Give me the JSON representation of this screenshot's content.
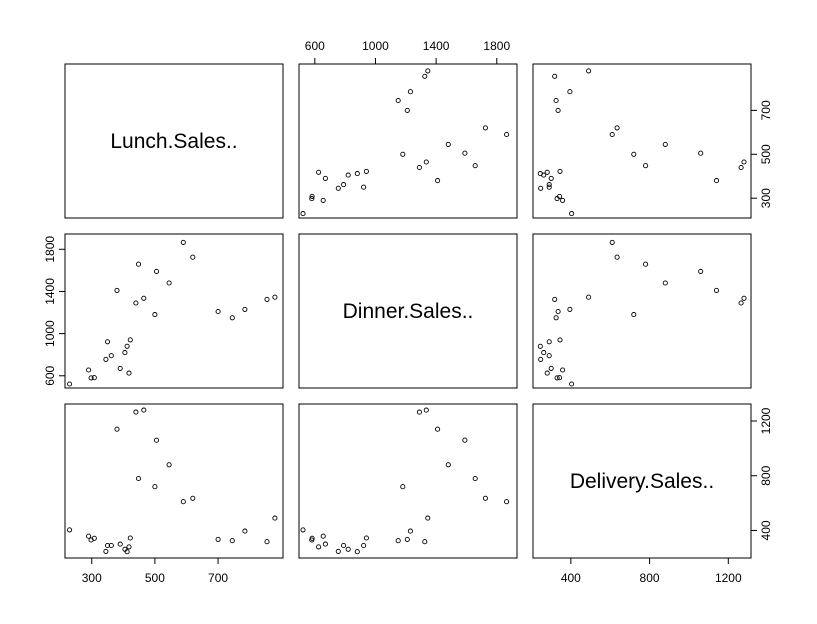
{
  "chart_data": {
    "type": "scatter",
    "subtype": "pairs-matrix",
    "variables": [
      "Lunch.Sales..",
      "Dinner.Sales..",
      "Delivery.Sales.."
    ],
    "ticks": {
      "Lunch.Sales..": [
        300,
        500,
        700
      ],
      "Dinner.Sales..": [
        600,
        1000,
        1400,
        1800
      ],
      "Delivery.Sales..": [
        400,
        800,
        1200
      ]
    },
    "ranges": {
      "Lunch.Sales..": [
        228,
        893
      ],
      "Dinner.Sales..": [
        522,
        1907
      ],
      "Delivery.Sales..": [
        228,
        1295
      ]
    },
    "observations": [
      {
        "lunch": 230,
        "dinner": 522,
        "delivery": 404
      },
      {
        "lunch": 290,
        "dinner": 655,
        "delivery": 358
      },
      {
        "lunch": 298,
        "dinner": 580,
        "delivery": 330
      },
      {
        "lunch": 308,
        "dinner": 582,
        "delivery": 343
      },
      {
        "lunch": 345,
        "dinner": 755,
        "delivery": 247
      },
      {
        "lunch": 350,
        "dinner": 922,
        "delivery": 290
      },
      {
        "lunch": 362,
        "dinner": 790,
        "delivery": 290
      },
      {
        "lunch": 380,
        "dinner": 1410,
        "delivery": 1140
      },
      {
        "lunch": 390,
        "dinner": 670,
        "delivery": 300
      },
      {
        "lunch": 405,
        "dinner": 820,
        "delivery": 262
      },
      {
        "lunch": 412,
        "dinner": 880,
        "delivery": 245
      },
      {
        "lunch": 418,
        "dinner": 625,
        "delivery": 280
      },
      {
        "lunch": 422,
        "dinner": 940,
        "delivery": 345
      },
      {
        "lunch": 440,
        "dinner": 1290,
        "delivery": 1265
      },
      {
        "lunch": 448,
        "dinner": 1658,
        "delivery": 780
      },
      {
        "lunch": 465,
        "dinner": 1335,
        "delivery": 1280
      },
      {
        "lunch": 500,
        "dinner": 1180,
        "delivery": 720
      },
      {
        "lunch": 505,
        "dinner": 1590,
        "delivery": 1060
      },
      {
        "lunch": 545,
        "dinner": 1480,
        "delivery": 880
      },
      {
        "lunch": 590,
        "dinner": 1865,
        "delivery": 610
      },
      {
        "lunch": 620,
        "dinner": 1725,
        "delivery": 635
      },
      {
        "lunch": 700,
        "dinner": 1210,
        "delivery": 335
      },
      {
        "lunch": 745,
        "dinner": 1150,
        "delivery": 325
      },
      {
        "lunch": 785,
        "dinner": 1230,
        "delivery": 395
      },
      {
        "lunch": 855,
        "dinner": 1325,
        "delivery": 318
      },
      {
        "lunch": 880,
        "dinner": 1345,
        "delivery": 490
      }
    ],
    "title": "",
    "grid": false,
    "legend": "none"
  }
}
